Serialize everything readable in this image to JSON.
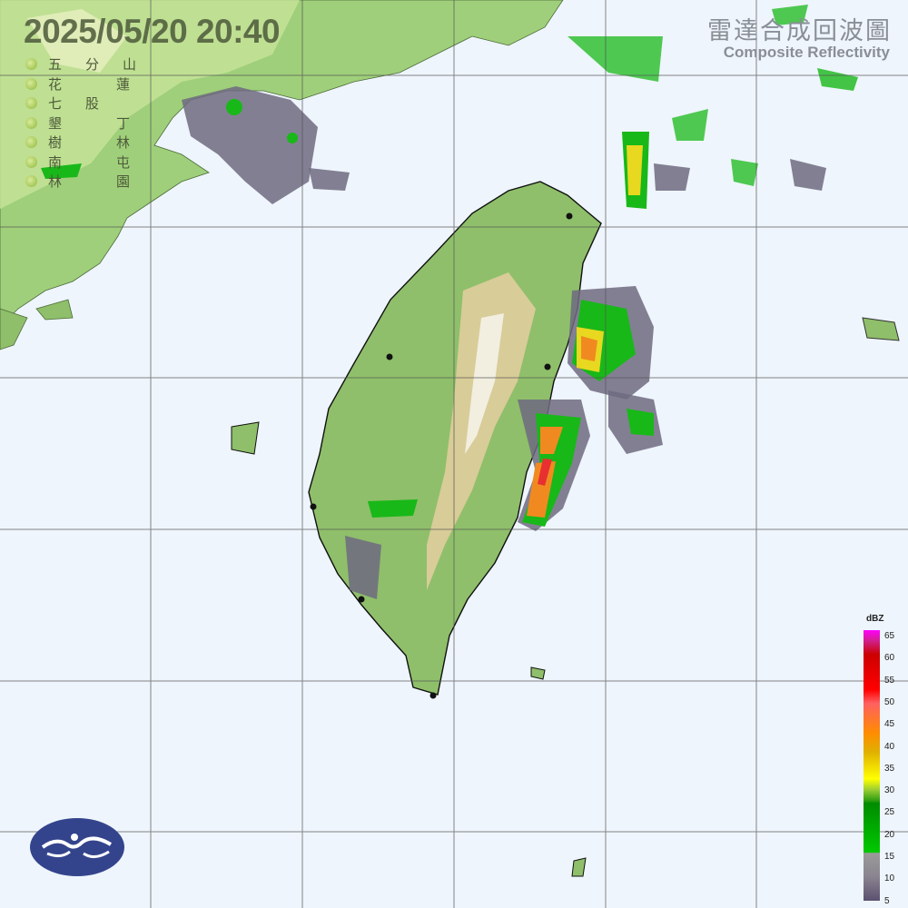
{
  "header": {
    "timestamp": "2025/05/20  20:40",
    "title_zh": "雷達合成回波圖",
    "title_en": "Composite Reflectivity"
  },
  "stations": [
    {
      "name": "五分山"
    },
    {
      "name": "花蓮"
    },
    {
      "name": "七股"
    },
    {
      "name": "墾丁"
    },
    {
      "name": "樹林"
    },
    {
      "name": "南屯"
    },
    {
      "name": "林園"
    }
  ],
  "legend": {
    "unit": "dBZ",
    "ticks": [
      "65",
      "60",
      "55",
      "50",
      "45",
      "40",
      "35",
      "30",
      "25",
      "20",
      "15",
      "10",
      "5"
    ]
  },
  "colors": {
    "sea": "#eef5fc",
    "land": "#8fbf6a",
    "grid": "#555555",
    "echo_weak": "#6f6a80",
    "echo_green": "#18b818",
    "echo_yellow": "#e8d820",
    "echo_orange": "#f08a20",
    "echo_red": "#e83030"
  },
  "logo": {
    "icon": "cwa-logo"
  }
}
